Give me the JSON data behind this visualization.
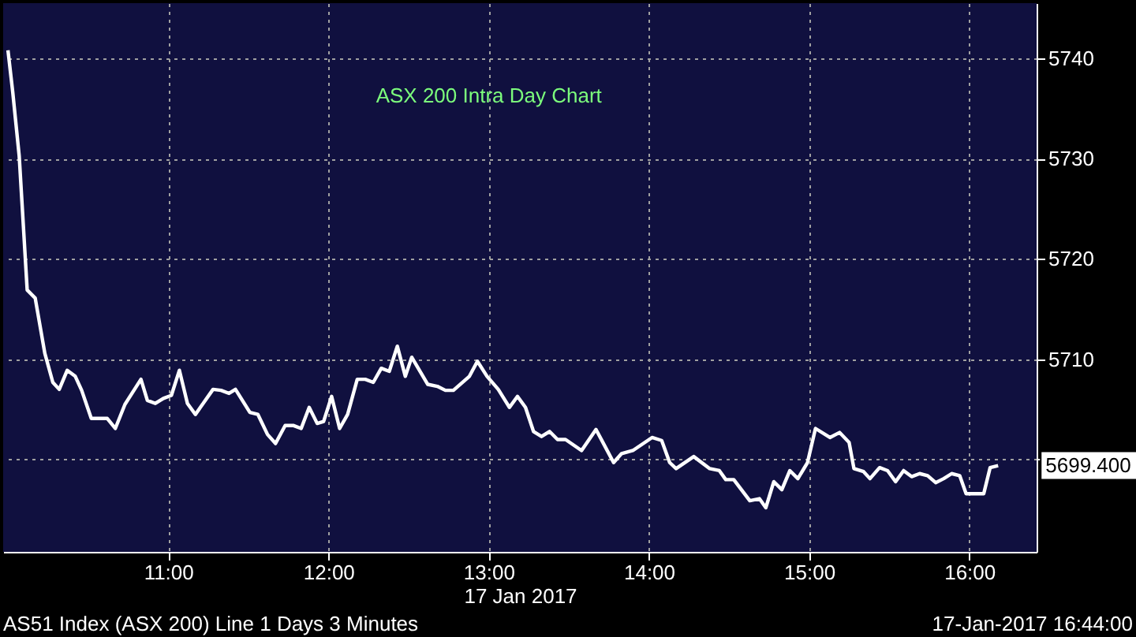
{
  "chart_data": {
    "type": "line",
    "title": "ASX 200 Intra Day Chart",
    "xlabel": "17 Jan 2017",
    "x": [
      10.0,
      10.03,
      10.07,
      10.12,
      10.17,
      10.23,
      10.28,
      10.32,
      10.37,
      10.42,
      10.46,
      10.52,
      10.62,
      10.67,
      10.73,
      10.83,
      10.87,
      10.92,
      10.97,
      11.02,
      11.07,
      11.12,
      11.17,
      11.28,
      11.33,
      11.38,
      11.42,
      11.51,
      11.56,
      11.62,
      11.67,
      11.73,
      11.78,
      11.83,
      11.88,
      11.93,
      11.97,
      12.02,
      12.07,
      12.12,
      12.18,
      12.23,
      12.28,
      12.33,
      12.38,
      12.43,
      12.48,
      12.52,
      12.62,
      12.68,
      12.73,
      12.78,
      12.88,
      12.93,
      12.99,
      13.06,
      13.13,
      13.18,
      13.23,
      13.28,
      13.33,
      13.38,
      13.43,
      13.48,
      13.58,
      13.67,
      13.78,
      13.83,
      13.9,
      14.02,
      14.08,
      14.13,
      14.17,
      14.28,
      14.38,
      14.44,
      14.48,
      14.53,
      14.63,
      14.69,
      14.73,
      14.78,
      14.83,
      14.88,
      14.93,
      14.99,
      15.04,
      15.13,
      15.19,
      15.25,
      15.28,
      15.34,
      15.38,
      15.44,
      15.49,
      15.54,
      15.59,
      15.64,
      15.69,
      15.74,
      15.79,
      15.84,
      15.89,
      15.94,
      15.98,
      16.09,
      16.13,
      16.18
    ],
    "series": [
      {
        "color": "#ffffff",
        "values": [
          5740.8,
          5736.6,
          5730.3,
          5716.9,
          5716.1,
          5710.6,
          5707.7,
          5707.0,
          5708.9,
          5708.3,
          5706.9,
          5704.1,
          5704.1,
          5703.1,
          5705.5,
          5708.0,
          5705.9,
          5705.6,
          5706.1,
          5706.4,
          5708.9,
          5705.6,
          5704.5,
          5707.0,
          5706.9,
          5706.6,
          5707.0,
          5704.7,
          5704.5,
          5702.5,
          5701.6,
          5703.4,
          5703.4,
          5703.1,
          5705.2,
          5703.6,
          5703.8,
          5706.3,
          5703.1,
          5704.5,
          5708.0,
          5708.0,
          5707.7,
          5709.1,
          5708.8,
          5711.3,
          5708.3,
          5710.2,
          5707.5,
          5707.3,
          5706.9,
          5706.9,
          5708.3,
          5709.8,
          5708.3,
          5707.0,
          5705.2,
          5706.3,
          5705.2,
          5702.8,
          5702.3,
          5702.8,
          5702.0,
          5702.0,
          5700.9,
          5703.0,
          5699.7,
          5700.6,
          5700.9,
          5702.2,
          5701.9,
          5699.7,
          5699.1,
          5700.3,
          5699.1,
          5698.9,
          5698.0,
          5698.0,
          5695.9,
          5696.1,
          5695.2,
          5697.8,
          5697.0,
          5698.9,
          5698.1,
          5699.7,
          5703.1,
          5702.2,
          5702.7,
          5701.7,
          5699.1,
          5698.8,
          5698.1,
          5699.2,
          5698.9,
          5697.8,
          5698.9,
          5698.3,
          5698.6,
          5698.4,
          5697.7,
          5698.1,
          5698.6,
          5698.4,
          5696.6,
          5696.6,
          5699.2,
          5699.4
        ]
      }
    ],
    "xlim": [
      9.97,
      16.42
    ],
    "ylim": [
      5690.8,
      5745.5
    ],
    "xticks": [
      {
        "value": 11,
        "label": "11:00"
      },
      {
        "value": 12,
        "label": "12:00"
      },
      {
        "value": 13,
        "label": "13:00"
      },
      {
        "value": 14,
        "label": "14:00"
      },
      {
        "value": 15,
        "label": "15:00"
      },
      {
        "value": 16,
        "label": "16:00"
      }
    ],
    "yticks": [
      {
        "value": 5700,
        "label": null
      },
      5710,
      5720,
      5730,
      5740
    ],
    "grid": true,
    "marker": "none",
    "line_style": "solid",
    "annotations": [
      {
        "text": "5699.400",
        "x": 16.18,
        "y": 5699.4
      },
      "AS51 Index (ASX 200) Line 1 Days 3 Minutes",
      "17-Jan-2017 16:44:00"
    ]
  }
}
